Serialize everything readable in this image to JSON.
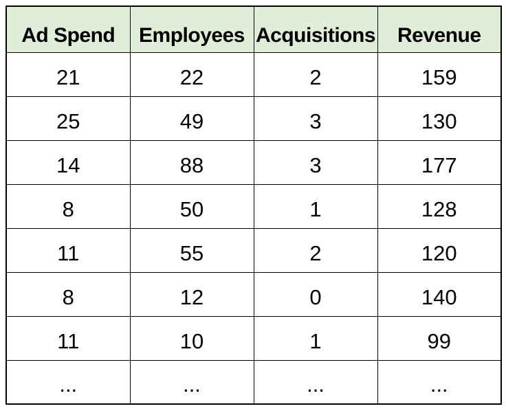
{
  "chart_data": {
    "type": "table",
    "title": "",
    "columns": [
      "Ad Spend",
      "Employees",
      "Acquisitions",
      "Revenue"
    ],
    "rows": [
      [
        "21",
        "22",
        "2",
        "159"
      ],
      [
        "25",
        "49",
        "3",
        "130"
      ],
      [
        "14",
        "88",
        "3",
        "177"
      ],
      [
        "8",
        "50",
        "1",
        "128"
      ],
      [
        "11",
        "55",
        "2",
        "120"
      ],
      [
        "8",
        "12",
        "0",
        "140"
      ],
      [
        "11",
        "10",
        "1",
        "99"
      ],
      [
        "...",
        "...",
        "...",
        "..."
      ]
    ],
    "layout": {
      "header_bg": "#E0EDD7",
      "border_color": "#000000",
      "text_color": "#000000",
      "background": "#ffffff",
      "grid": "on"
    }
  }
}
